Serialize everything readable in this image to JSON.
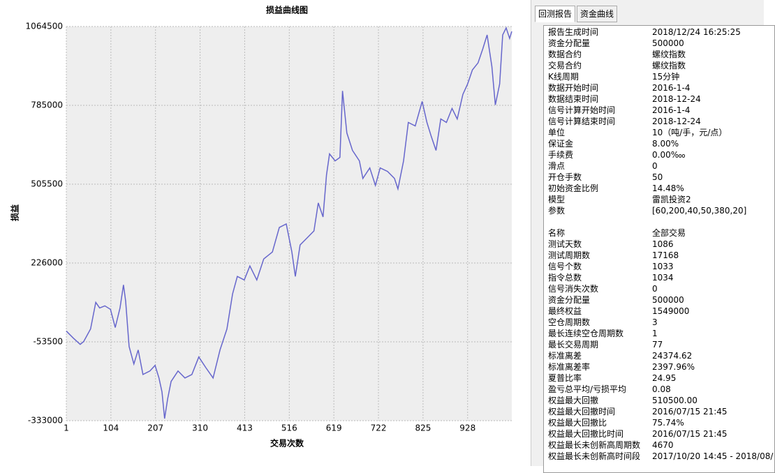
{
  "chart_data": {
    "type": "line",
    "title": "损益曲线图",
    "xlabel": "交易次数",
    "ylabel": "损益",
    "color": "#6666cc",
    "grid": true,
    "xlim": [
      1,
      1030
    ],
    "xticks": [
      1,
      104,
      207,
      310,
      413,
      516,
      619,
      722,
      825,
      928
    ],
    "ylim": [
      -333000,
      1064500
    ],
    "yticks": [
      -333000,
      -53500,
      226000,
      505500,
      785000,
      1064500
    ],
    "x": [
      1,
      17,
      33,
      41,
      57,
      69,
      78,
      90,
      103,
      114,
      125,
      133,
      138,
      146,
      157,
      167,
      178,
      194,
      206,
      215,
      222,
      228,
      235,
      243,
      259,
      275,
      291,
      307,
      323,
      340,
      356,
      372,
      385,
      396,
      412,
      425,
      441,
      457,
      477,
      493,
      509,
      522,
      530,
      541,
      557,
      573,
      583,
      594,
      602,
      609,
      622,
      633,
      639,
      649,
      662,
      678,
      686,
      702,
      715,
      726,
      743,
      759,
      767,
      780,
      791,
      807,
      823,
      834,
      844,
      855,
      866,
      879,
      892,
      904,
      917,
      928,
      939,
      952,
      963,
      973,
      984,
      992,
      1002,
      1009,
      1017,
      1025,
      1030
    ],
    "values": [
      -15300,
      -40100,
      -62400,
      -52500,
      -7800,
      86500,
      66600,
      74100,
      61700,
      -2800,
      66600,
      148500,
      91500,
      -69900,
      -132000,
      -82300,
      -169200,
      -156800,
      -136900,
      -181600,
      -231300,
      -325500,
      -256000,
      -194000,
      -156800,
      -181600,
      -169200,
      -107100,
      -144400,
      -181600,
      -82300,
      -7800,
      116300,
      178400,
      165900,
      215600,
      165900,
      240400,
      265200,
      352100,
      364500,
      265200,
      178400,
      290000,
      314800,
      339600,
      439000,
      389300,
      538300,
      612800,
      588000,
      600400,
      836100,
      687200,
      625200,
      588000,
      525900,
      563200,
      501100,
      563200,
      550800,
      525900,
      488700,
      588000,
      724400,
      712000,
      798900,
      724400,
      674800,
      625200,
      736800,
      724400,
      774100,
      736800,
      823700,
      860900,
      910600,
      935400,
      985100,
      1034700,
      923000,
      786500,
      860900,
      1034700,
      1059500,
      1022300,
      1047100
    ]
  },
  "tabs": [
    "回测报告",
    "资金曲线"
  ],
  "report": {
    "sections": [
      {
        "rows": [
          [
            "报告生成时间",
            "2018/12/24 16:25:25"
          ],
          [
            "资金分配量",
            "500000"
          ],
          [
            "数据合约",
            "螺纹指数"
          ],
          [
            "交易合约",
            "螺纹指数"
          ],
          [
            "K线周期",
            "15分钟"
          ],
          [
            "数据开始时间",
            "2016-1-4"
          ],
          [
            "数据结束时间",
            "2018-12-24"
          ],
          [
            "信号计算开始时间",
            "2016-1-4"
          ],
          [
            "信号计算结束时间",
            "2018-12-24"
          ],
          [
            "单位",
            "10（吨/手，元/点）"
          ],
          [
            "保证金",
            "8.00%"
          ],
          [
            "手续费",
            "0.00‱"
          ],
          [
            "滑点",
            "0"
          ],
          [
            "开仓手数",
            "50"
          ],
          [
            "初始资金比例",
            "14.48%"
          ],
          [
            "模型",
            "雷凯投资2"
          ],
          [
            "参数",
            "[60,200,40,50,380,20]"
          ]
        ]
      },
      {
        "rows": [
          [
            "名称",
            "全部交易"
          ],
          [
            "测试天数",
            "1086"
          ],
          [
            "测试周期数",
            "17168"
          ],
          [
            "信号个数",
            "1033"
          ],
          [
            "指令总数",
            "1034"
          ],
          [
            "信号消失次数",
            "0"
          ],
          [
            "资金分配量",
            "500000"
          ],
          [
            "最终权益",
            "1549000"
          ],
          [
            "空仓周期数",
            "3"
          ],
          [
            "最长连续空仓周期数",
            "1"
          ],
          [
            "最长交易周期",
            "77"
          ],
          [
            "标准离差",
            "24374.62"
          ],
          [
            "标准离差率",
            "2397.96%"
          ],
          [
            "夏普比率",
            "24.95"
          ],
          [
            "盈亏总平均/亏损平均",
            "0.08"
          ],
          [
            "权益最大回撤",
            "510500.00"
          ],
          [
            "权益最大回撤时间",
            "2016/07/15 21:45"
          ],
          [
            "权益最大回撤比",
            "75.74%"
          ],
          [
            "权益最大回撤比时间",
            "2016/07/15 21:45"
          ],
          [
            "权益最长未创新高周期数",
            "4670"
          ],
          [
            "权益最长未创新高时间段",
            "2017/10/20 14:45 - 2018/08/"
          ]
        ]
      }
    ]
  }
}
